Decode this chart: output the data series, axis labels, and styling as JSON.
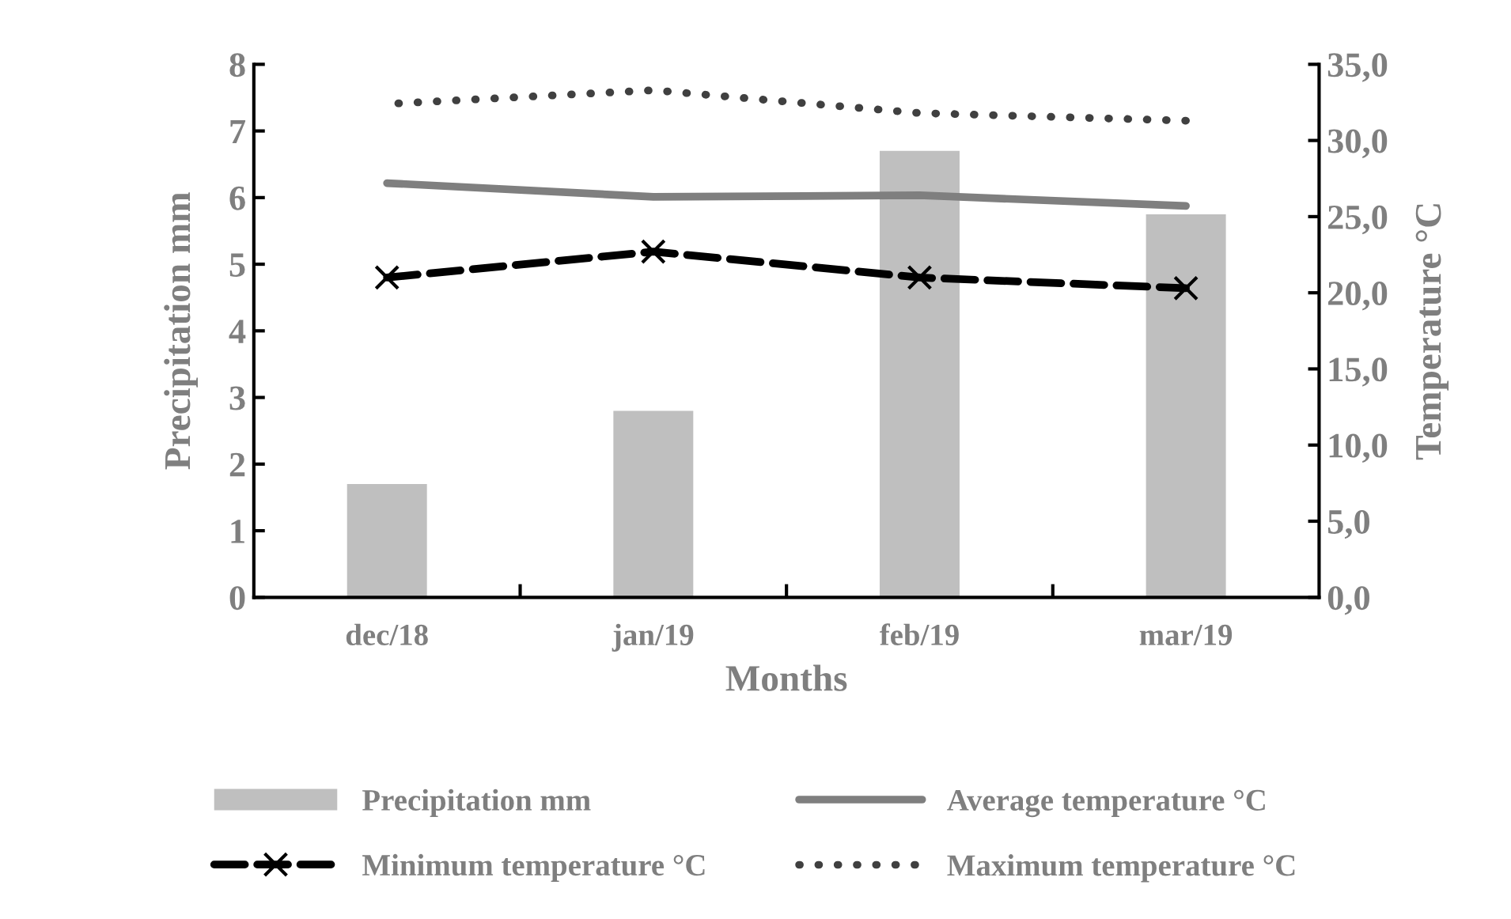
{
  "chart_data": {
    "type": "bar",
    "xlabel": "Months",
    "ylabel": "Precipitation mm",
    "y2label": "Temperature °C",
    "categories": [
      "dec/18",
      "jan/19",
      "feb/19",
      "mar/19"
    ],
    "ylim": [
      0,
      8
    ],
    "yticks": [
      0,
      1,
      2,
      3,
      4,
      5,
      6,
      7,
      8
    ],
    "y2lim": [
      0,
      35
    ],
    "y2ticks": [
      {
        "value": 0,
        "label": "0,0"
      },
      {
        "value": 5,
        "label": "5,0"
      },
      {
        "value": 10,
        "label": "10,0"
      },
      {
        "value": 15,
        "label": "15,0"
      },
      {
        "value": 20,
        "label": "20,0"
      },
      {
        "value": 25,
        "label": "25,0"
      },
      {
        "value": 30,
        "label": "30,0"
      },
      {
        "value": 35,
        "label": "35,0"
      }
    ],
    "grid": false,
    "legend": "bottom",
    "series": [
      {
        "name": "Precipitation mm",
        "color": "#bfbfbf",
        "values": [
          1.7,
          2.8,
          6.7,
          5.75
        ]
      },
      {
        "name": "Average temperature °C",
        "type": "line",
        "axis": "y2",
        "color": "#7f7f7f",
        "line_style": "solid",
        "marker": "none",
        "values": [
          27.2,
          26.3,
          26.4,
          25.7
        ]
      },
      {
        "name": "Minimum temperature °C",
        "type": "line",
        "axis": "y2",
        "color": "#000000",
        "line_style": "dashed",
        "marker": "cross",
        "values": [
          21.0,
          22.7,
          21.0,
          20.3
        ]
      },
      {
        "name": "Maximum temperature °C",
        "type": "line",
        "axis": "y2",
        "color": "#404040",
        "line_style": "dotted",
        "marker": "none",
        "values": [
          32.4,
          33.3,
          31.8,
          31.3
        ]
      }
    ]
  }
}
